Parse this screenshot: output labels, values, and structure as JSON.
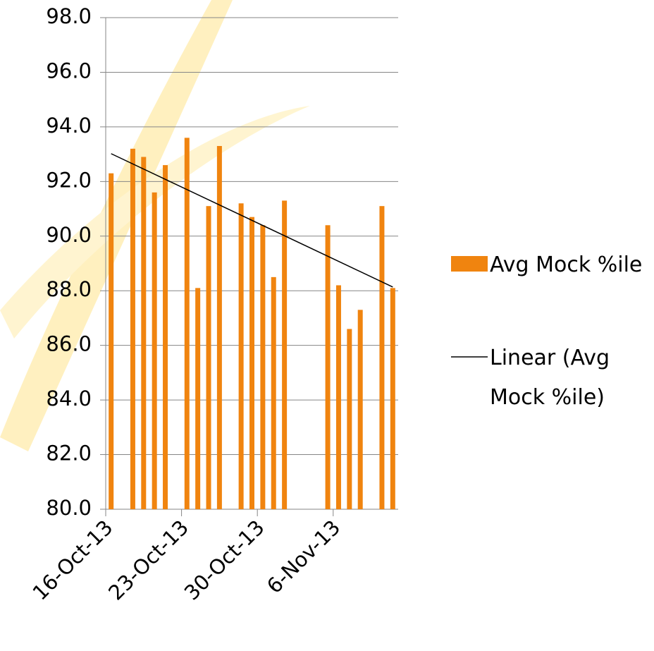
{
  "chart_data": {
    "type": "bar",
    "x": [
      "16-Oct-13",
      "18-Oct-13",
      "19-Oct-13",
      "20-Oct-13",
      "21-Oct-13",
      "23-Oct-13",
      "24-Oct-13",
      "25-Oct-13",
      "26-Oct-13",
      "28-Oct-13",
      "29-Oct-13",
      "30-Oct-13",
      "31-Oct-13",
      "1-Nov-13",
      "5-Nov-13",
      "6-Nov-13",
      "7-Nov-13",
      "8-Nov-13",
      "10-Nov-13",
      "11-Nov-13"
    ],
    "series": [
      {
        "name": "Avg Mock %ile",
        "color": "#f0840f",
        "values": [
          92.3,
          93.2,
          92.9,
          91.6,
          92.6,
          93.6,
          88.1,
          91.1,
          93.3,
          91.2,
          90.7,
          90.4,
          88.5,
          91.3,
          90.4,
          88.2,
          86.6,
          87.3,
          91.1,
          88.1
        ]
      }
    ],
    "trendline": {
      "name": "Linear (Avg Mock %ile)",
      "color": "#000000"
    },
    "xlim": [
      "16-Oct-13",
      "12-Nov-13"
    ],
    "xticks": [
      "16-Oct-13",
      "23-Oct-13",
      "30-Oct-13",
      "6-Nov-13"
    ],
    "ylim": [
      80,
      98
    ],
    "yticks": [
      {
        "value": 80,
        "label": "80.0"
      },
      {
        "value": 82,
        "label": "82.0"
      },
      {
        "value": 84,
        "label": "84.0"
      },
      {
        "value": 86,
        "label": "86.0"
      },
      {
        "value": 88,
        "label": "88.0"
      },
      {
        "value": 90,
        "label": "90.0"
      },
      {
        "value": 92,
        "label": "92.0"
      },
      {
        "value": 94,
        "label": "94.0"
      },
      {
        "value": 96,
        "label": "96.0"
      },
      {
        "value": 98,
        "label": "98.0"
      }
    ],
    "grid": true,
    "legend": "right"
  }
}
